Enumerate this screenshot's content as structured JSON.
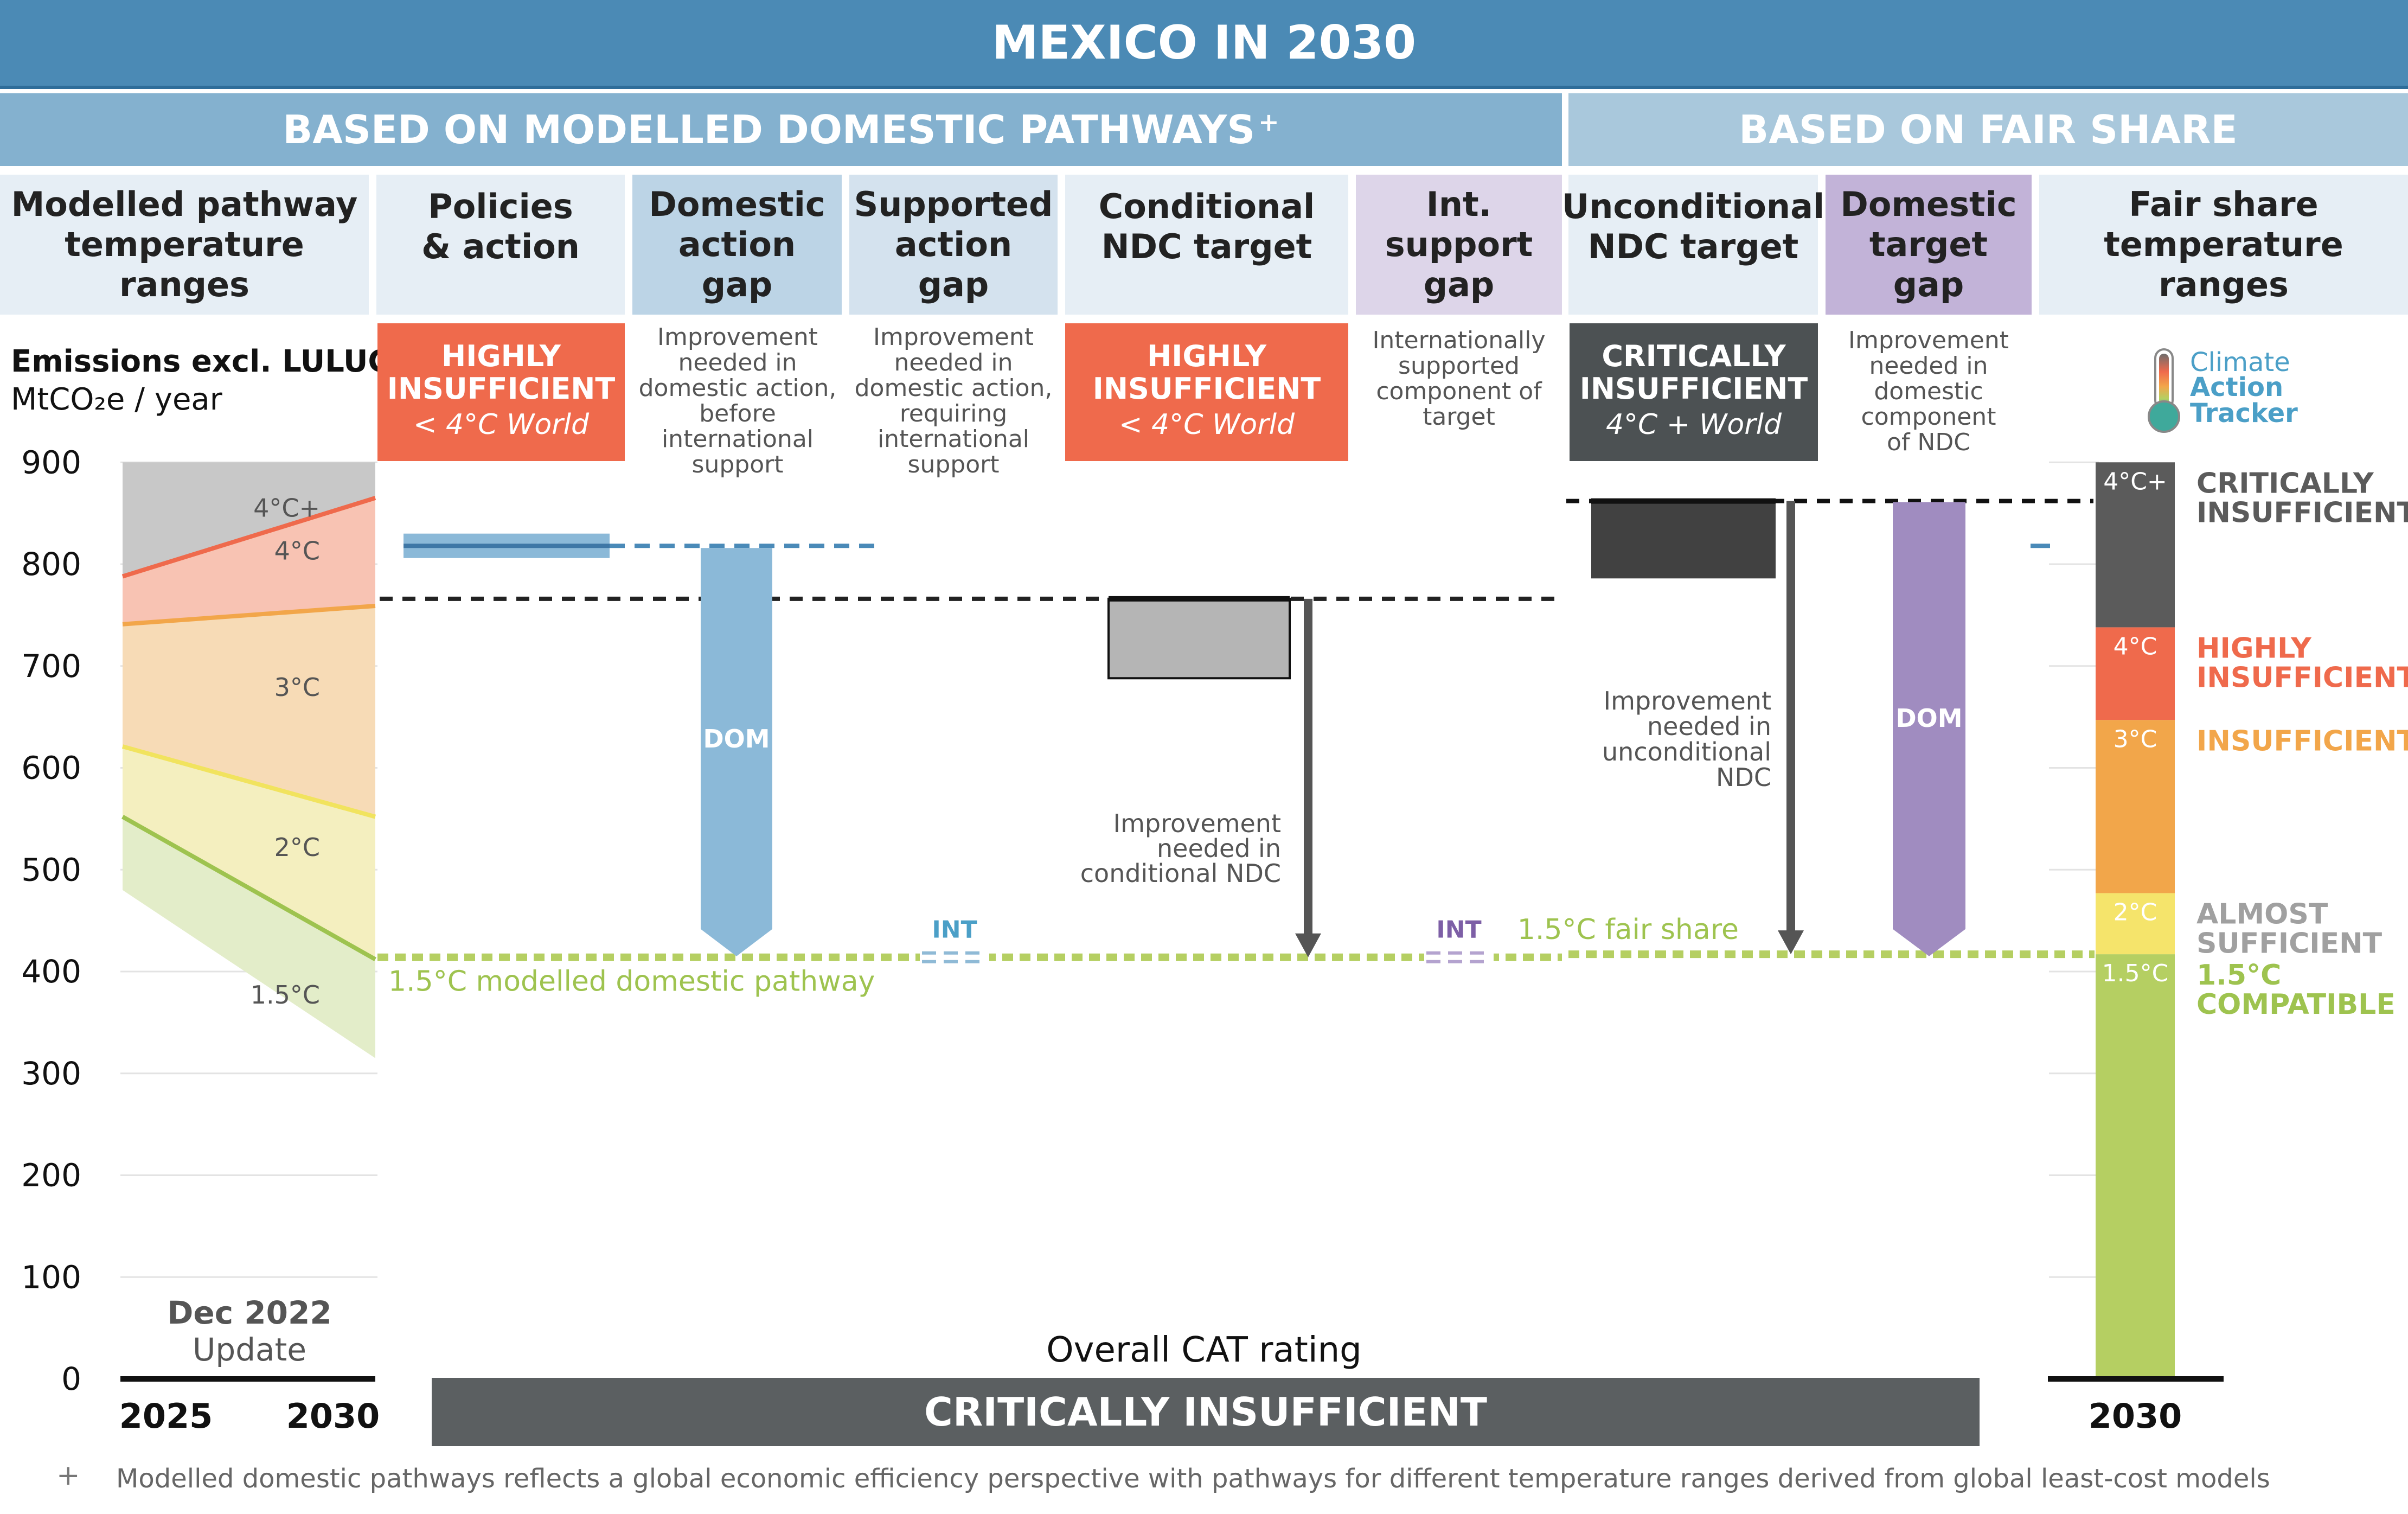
{
  "title": "MEXICO IN 2030",
  "sections": {
    "modelled": "BASED ON MODELLED DOMESTIC PATHWAYS",
    "modelled_mark": "+",
    "fair": "BASED ON FAIR SHARE"
  },
  "columns": [
    "Modelled pathway\ntemperature\nranges",
    "Policies\n& action",
    "Domestic\naction\ngap",
    "Supported\naction\ngap",
    "Conditional\nNDC target",
    "Int.\nsupport\ngap",
    "Unconditional\nNDC target",
    "Domestic\ntarget\ngap",
    "Fair share\ntemperature\nranges"
  ],
  "ratings": {
    "policies": {
      "label": "HIGHLY\nINSUFFICIENT",
      "world": "< 4°C World",
      "color": "#ef6a4c"
    },
    "conditional": {
      "label": "HIGHLY\nINSUFFICIENT",
      "world": "< 4°C World",
      "color": "#ef6a4c"
    },
    "unconditional": {
      "label": "CRITICALLY\nINSUFFICIENT",
      "world": "4°C + World",
      "color": "#4c5153"
    }
  },
  "descriptions": {
    "domestic_gap": "Improvement\nneeded in\ndomestic action,\nbefore\ninternational\nsupport",
    "supported_gap": "Improvement\nneeded in\ndomestic action,\nrequiring\ninternational\nsupport",
    "int_support": "Internationally\nsupported\ncomponent of\ntarget",
    "domestic_target": "Improvement\nneeded in\ndomestic\ncomponent\nof NDC"
  },
  "annotations": {
    "conditional": "Improvement\nneeded in\nconditional NDC",
    "unconditional": "Improvement\nneeded in\nunconditional\nNDC",
    "dom": "DOM",
    "int": "INT",
    "modelled_line": "1.5°C modelled domestic pathway",
    "fair_line": "1.5°C fair share"
  },
  "logo": {
    "line1": "Climate",
    "line2": "Action",
    "line3": "Tracker"
  },
  "update": {
    "date": "Dec 2022",
    "label": "Update"
  },
  "overall": {
    "label": "Overall CAT rating",
    "value": "CRITICALLY INSUFFICIENT"
  },
  "footnote": {
    "mark": "+",
    "text": "Modelled domestic pathways reflects a global economic efficiency perspective with pathways for different temperature ranges derived from global least-cost models"
  },
  "colors": {
    "title_bg": "#4b8ab5",
    "section_bg": "#84b1cf",
    "fair_bg": "#a9c8dc",
    "header_bg": "#e6eef5",
    "dom_blue": "#8bb9d8",
    "int_blue": "#c8dbea",
    "int_purple": "#d8d0e6",
    "dom_purple": "#a08cc0",
    "green": "#b5cf62",
    "critical": "#5b5b5b",
    "highly": "#ef6a4c",
    "insufficient": "#f2a64a",
    "almost": "#f5e46b"
  },
  "chart_data": {
    "type": "bar",
    "ylabel": "Emissions excl. LULUCF",
    "yunit": "MtCO₂e / year",
    "ylim": [
      0,
      900
    ],
    "yticks": [
      0,
      100,
      200,
      300,
      400,
      500,
      600,
      700,
      800,
      900
    ],
    "modelled_pathways": {
      "x": [
        "2025",
        "2030"
      ],
      "boundaries": [
        {
          "name": "4°C+",
          "values": [
            900,
            900
          ]
        },
        {
          "name": "4°C",
          "values": [
            788,
            865
          ]
        },
        {
          "name": "3°C",
          "values": [
            741,
            759
          ]
        },
        {
          "name": "2°C",
          "values": [
            621,
            552
          ]
        },
        {
          "name": "1.5°C",
          "values": [
            552,
            412
          ]
        },
        {
          "name": "lower",
          "values": [
            480,
            315
          ]
        }
      ],
      "band_labels": [
        "4°C+",
        "4°C",
        "3°C",
        "2°C",
        "1.5°C"
      ]
    },
    "policies_action": {
      "low": 806,
      "high": 830,
      "median": 818
    },
    "conditional_ndc": {
      "low": 688,
      "high": 766
    },
    "unconditional_ndc": {
      "low": 786,
      "high": 862
    },
    "modelled_1_5_pathway": 414,
    "fair_share_1_5": 417,
    "fair_share_ranges": {
      "x": "2030",
      "bands": [
        {
          "name": "1.5°C",
          "from": 0,
          "to": 417,
          "rating": "1.5°C\nCOMPATIBLE"
        },
        {
          "name": "2°C",
          "from": 417,
          "to": 477,
          "rating": "ALMOST\nSUFFICIENT"
        },
        {
          "name": "3°C",
          "from": 477,
          "to": 647,
          "rating": "INSUFFICIENT"
        },
        {
          "name": "4°C",
          "from": 647,
          "to": 738,
          "rating": "HIGHLY\nINSUFFICIENT"
        },
        {
          "name": "4°C+",
          "from": 738,
          "to": 900,
          "rating": "CRITICALLY\nINSUFFICIENT"
        }
      ]
    }
  }
}
